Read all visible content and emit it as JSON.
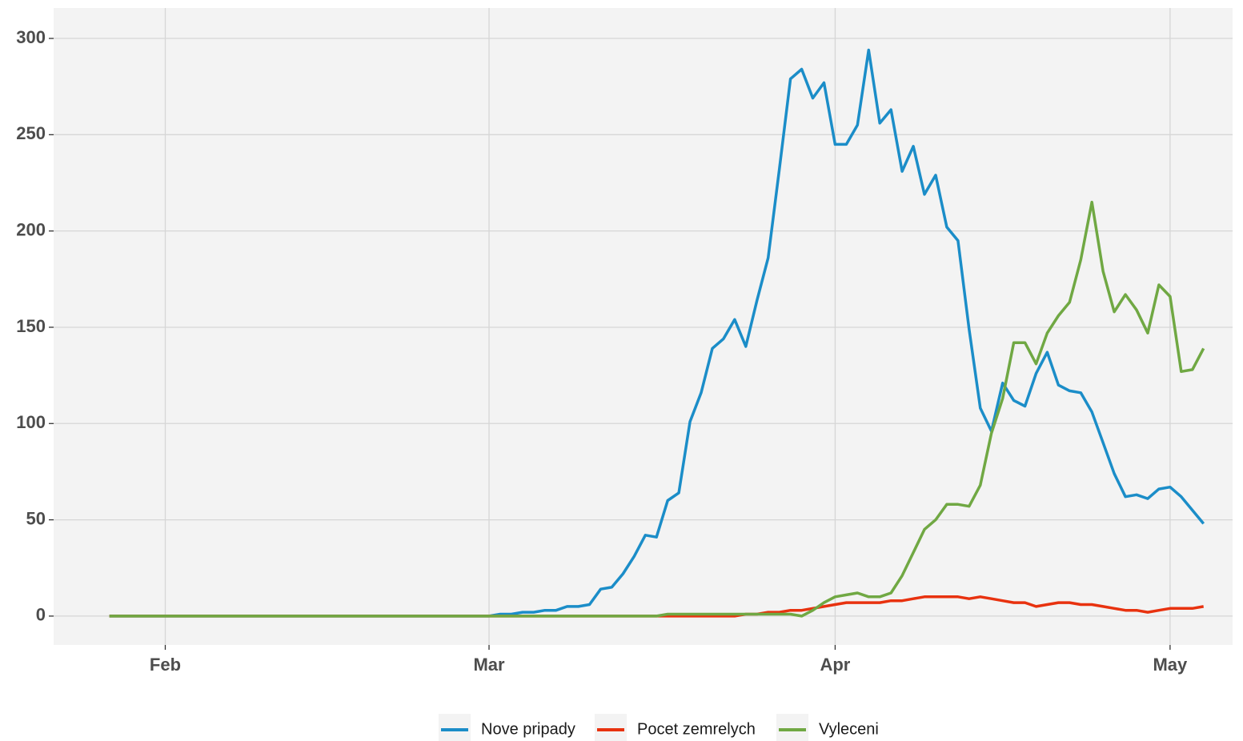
{
  "chart_data": {
    "type": "line",
    "x": [
      0,
      1,
      2,
      3,
      4,
      5,
      6,
      7,
      8,
      9,
      10,
      11,
      12,
      13,
      14,
      15,
      16,
      17,
      18,
      19,
      20,
      21,
      22,
      23,
      24,
      25,
      26,
      27,
      28,
      29,
      30,
      31,
      32,
      33,
      34,
      35,
      36,
      37,
      38,
      39,
      40,
      41,
      42,
      43,
      44,
      45,
      46,
      47,
      48,
      49,
      50,
      51,
      52,
      53,
      54,
      55,
      56,
      57,
      58,
      59,
      60,
      61,
      62,
      63,
      64,
      65,
      66,
      67,
      68,
      69,
      70,
      71,
      72,
      73,
      74,
      75,
      76,
      77,
      78,
      79,
      80,
      81,
      82,
      83,
      84,
      85,
      86,
      87,
      88,
      89,
      90,
      91,
      92,
      93,
      94,
      95,
      96,
      97,
      98
    ],
    "series": [
      {
        "name": "Nove pripady",
        "color": "#1b8dc8",
        "values": [
          0,
          0,
          0,
          0,
          0,
          0,
          0,
          0,
          0,
          0,
          0,
          0,
          0,
          0,
          0,
          0,
          0,
          0,
          0,
          0,
          0,
          0,
          0,
          0,
          0,
          0,
          0,
          0,
          0,
          0,
          0,
          0,
          0,
          0,
          0,
          1,
          1,
          2,
          2,
          3,
          3,
          5,
          5,
          6,
          14,
          15,
          22,
          31,
          42,
          41,
          60,
          64,
          101,
          116,
          139,
          144,
          154,
          140,
          164,
          186,
          232,
          279,
          284,
          269,
          277,
          245,
          245,
          255,
          294,
          256,
          263,
          231,
          244,
          219,
          229,
          202,
          195,
          149,
          108,
          96,
          121,
          112,
          109,
          126,
          137,
          120,
          117,
          116,
          106,
          90,
          74,
          62,
          63,
          61,
          66,
          67,
          62,
          55,
          48
        ]
      },
      {
        "name": "Pocet zemrelych",
        "color": "#e8320f",
        "values": [
          0,
          0,
          0,
          0,
          0,
          0,
          0,
          0,
          0,
          0,
          0,
          0,
          0,
          0,
          0,
          0,
          0,
          0,
          0,
          0,
          0,
          0,
          0,
          0,
          0,
          0,
          0,
          0,
          0,
          0,
          0,
          0,
          0,
          0,
          0,
          0,
          0,
          0,
          0,
          0,
          0,
          0,
          0,
          0,
          0,
          0,
          0,
          0,
          0,
          0,
          0,
          0,
          0,
          0,
          0,
          0,
          0,
          1,
          1,
          2,
          2,
          3,
          3,
          4,
          5,
          6,
          7,
          7,
          7,
          7,
          8,
          8,
          9,
          10,
          10,
          10,
          10,
          9,
          10,
          9,
          8,
          7,
          7,
          5,
          6,
          7,
          7,
          6,
          6,
          5,
          4,
          3,
          3,
          2,
          3,
          4,
          4,
          4,
          5
        ]
      },
      {
        "name": "Vyleceni",
        "color": "#70a843",
        "values": [
          0,
          0,
          0,
          0,
          0,
          0,
          0,
          0,
          0,
          0,
          0,
          0,
          0,
          0,
          0,
          0,
          0,
          0,
          0,
          0,
          0,
          0,
          0,
          0,
          0,
          0,
          0,
          0,
          0,
          0,
          0,
          0,
          0,
          0,
          0,
          0,
          0,
          0,
          0,
          0,
          0,
          0,
          0,
          0,
          0,
          0,
          0,
          0,
          0,
          0,
          1,
          1,
          1,
          1,
          1,
          1,
          1,
          1,
          1,
          1,
          1,
          1,
          0,
          3,
          7,
          10,
          11,
          12,
          10,
          10,
          12,
          21,
          33,
          45,
          50,
          58,
          58,
          57,
          68,
          95,
          113,
          142,
          142,
          131,
          147,
          156,
          163,
          185,
          215,
          179,
          158,
          167,
          159,
          147,
          172,
          166,
          127,
          128,
          139
        ]
      }
    ],
    "xlim": [
      -5,
      100.6
    ],
    "xticks": [
      {
        "value": 5,
        "label": "Feb"
      },
      {
        "value": 34,
        "label": "Mar"
      },
      {
        "value": 65,
        "label": "Apr"
      },
      {
        "value": 95,
        "label": "May"
      }
    ],
    "ylim": [
      -15,
      315.8
    ],
    "yticks": [
      0,
      50,
      100,
      150,
      200,
      250,
      300
    ],
    "grid": true,
    "legend": "bottom"
  }
}
